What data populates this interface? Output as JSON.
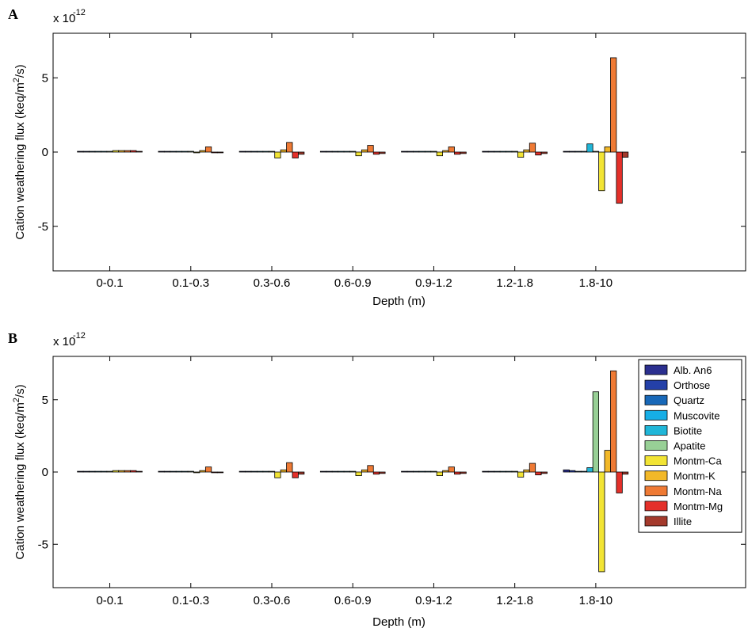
{
  "colors": {
    "Alb. An6": "#2b2f8f",
    "Orthose": "#2440a8",
    "Quartz": "#1868b8",
    "Muscovite": "#16aee6",
    "Biotite": "#20b6d8",
    "Apatite": "#98d096",
    "Montm-Ca": "#f2e434",
    "Montm-K": "#f2b828",
    "Montm-Na": "#ef7a34",
    "Montm-Mg": "#e4302a",
    "Illite": "#a43a2c"
  },
  "chart_data": [
    {
      "type": "bar",
      "panel_label": "A",
      "multiplier_label_base": "x 10",
      "multiplier_label_exp": "-12",
      "xlabel": "Depth (m)",
      "ylabel_pre": "Cation weathering flux  (keq/m",
      "ylabel_sup": "2",
      "ylabel_post": "/s)",
      "ylim": [
        -8,
        8
      ],
      "yticks": [
        -5,
        0,
        5
      ],
      "ytick_labels": [
        "-5",
        "0",
        "5"
      ],
      "xlim": [
        0.3,
        8.85
      ],
      "categories": [
        "0-0.1",
        "0.1-0.3",
        "0.3-0.6",
        "0.6-0.9",
        "0.9-1.2",
        "1.2-1.8",
        "1.8-10"
      ],
      "legend": false,
      "grid": false,
      "series": [
        {
          "name": "Alb. An6",
          "values": [
            0.05,
            0.05,
            0.05,
            0.05,
            0.05,
            0.05,
            0.05
          ]
        },
        {
          "name": "Orthose",
          "values": [
            0.05,
            0.05,
            0.05,
            0.05,
            0.05,
            0.05,
            0.05
          ]
        },
        {
          "name": "Quartz",
          "values": [
            0.05,
            0.05,
            0.05,
            0.05,
            0.05,
            0.05,
            0.05
          ]
        },
        {
          "name": "Muscovite",
          "values": [
            0.05,
            0.05,
            0.05,
            0.05,
            0.05,
            0.05,
            0.05
          ]
        },
        {
          "name": "Biotite",
          "values": [
            0.05,
            0.05,
            0.05,
            0.05,
            0.05,
            0.05,
            0.55
          ]
        },
        {
          "name": "Apatite",
          "values": [
            0.05,
            0.05,
            0.05,
            0.05,
            0.05,
            0.05,
            0.05
          ]
        },
        {
          "name": "Montm-Ca",
          "values": [
            0.1,
            -0.05,
            -0.4,
            -0.25,
            -0.25,
            -0.35,
            -2.6
          ]
        },
        {
          "name": "Montm-K",
          "values": [
            0.1,
            0.1,
            0.15,
            0.15,
            0.1,
            0.15,
            0.35
          ]
        },
        {
          "name": "Montm-Na",
          "values": [
            0.1,
            0.35,
            0.65,
            0.45,
            0.35,
            0.6,
            6.35
          ]
        },
        {
          "name": "Montm-Mg",
          "values": [
            0.1,
            -0.05,
            -0.4,
            -0.15,
            -0.15,
            -0.2,
            -3.45
          ]
        },
        {
          "name": "Illite",
          "values": [
            0.05,
            -0.05,
            -0.15,
            -0.1,
            -0.1,
            -0.1,
            -0.35
          ]
        }
      ]
    },
    {
      "type": "bar",
      "panel_label": "B",
      "multiplier_label_base": "x 10",
      "multiplier_label_exp": "-12",
      "xlabel": "Depth (m)",
      "ylabel_pre": "Cation weathering flux  (keq/m",
      "ylabel_sup": "2",
      "ylabel_post": "/s)",
      "ylim": [
        -8,
        8
      ],
      "yticks": [
        -5,
        0,
        5
      ],
      "ytick_labels": [
        "-5",
        "0",
        "5"
      ],
      "xlim": [
        0.3,
        8.85
      ],
      "categories": [
        "0-0.1",
        "0.1-0.3",
        "0.3-0.6",
        "0.6-0.9",
        "0.9-1.2",
        "1.2-1.8",
        "1.8-10"
      ],
      "legend": true,
      "legend_position": "top-right",
      "grid": false,
      "series": [
        {
          "name": "Alb. An6",
          "values": [
            0.05,
            0.05,
            0.05,
            0.05,
            0.05,
            0.05,
            0.15
          ]
        },
        {
          "name": "Orthose",
          "values": [
            0.05,
            0.05,
            0.05,
            0.05,
            0.05,
            0.05,
            0.1
          ]
        },
        {
          "name": "Quartz",
          "values": [
            0.05,
            0.05,
            0.05,
            0.05,
            0.05,
            0.05,
            0.05
          ]
        },
        {
          "name": "Muscovite",
          "values": [
            0.05,
            0.05,
            0.05,
            0.05,
            0.05,
            0.05,
            0.05
          ]
        },
        {
          "name": "Biotite",
          "values": [
            0.05,
            0.05,
            0.05,
            0.05,
            0.05,
            0.05,
            0.3
          ]
        },
        {
          "name": "Apatite",
          "values": [
            0.05,
            0.05,
            0.05,
            0.05,
            0.05,
            0.05,
            5.55
          ]
        },
        {
          "name": "Montm-Ca",
          "values": [
            0.1,
            -0.05,
            -0.4,
            -0.25,
            -0.25,
            -0.35,
            -6.9
          ]
        },
        {
          "name": "Montm-K",
          "values": [
            0.1,
            0.1,
            0.15,
            0.15,
            0.1,
            0.15,
            1.5
          ]
        },
        {
          "name": "Montm-Na",
          "values": [
            0.1,
            0.35,
            0.65,
            0.45,
            0.35,
            0.6,
            7.0
          ]
        },
        {
          "name": "Montm-Mg",
          "values": [
            0.1,
            -0.05,
            -0.4,
            -0.15,
            -0.15,
            -0.2,
            -1.45
          ]
        },
        {
          "name": "Illite",
          "values": [
            0.05,
            -0.05,
            -0.15,
            -0.1,
            -0.1,
            -0.1,
            -0.15
          ]
        }
      ]
    }
  ]
}
